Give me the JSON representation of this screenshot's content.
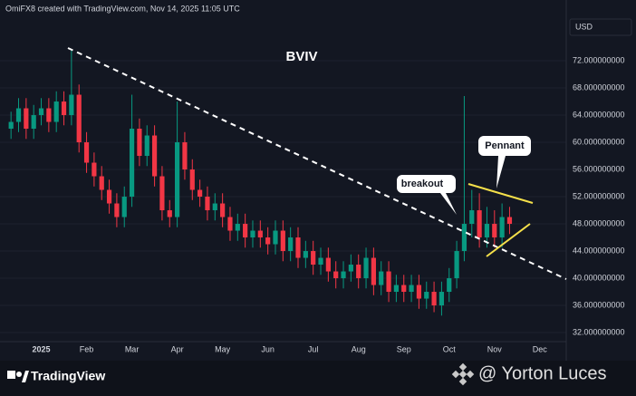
{
  "header": {
    "credit": "OmiFX8 created with TradingView.com, Nov 14, 2025 11:05 UTC"
  },
  "footer": {
    "brand": "TradingView",
    "author": "@ Yorton Luces"
  },
  "chart_data": {
    "type": "candlestick",
    "title": "BVIV",
    "currency_label": "USD",
    "annotations": [
      "breakout",
      "Pennant"
    ],
    "up_color": "#089981",
    "down_color": "#f23645",
    "grid": true,
    "categories": [
      null,
      null,
      null,
      null,
      "2025",
      null,
      null,
      null,
      null,
      null,
      "Feb",
      null,
      null,
      null,
      null,
      null,
      "Mar",
      null,
      null,
      null,
      null,
      null,
      "Apr",
      null,
      null,
      null,
      null,
      null,
      "May",
      null,
      null,
      null,
      null,
      null,
      "Jun",
      null,
      null,
      null,
      null,
      null,
      "Jul",
      null,
      null,
      null,
      null,
      null,
      "Aug",
      null,
      null,
      null,
      null,
      null,
      "Sep",
      null,
      null,
      null,
      null,
      null,
      "Oct",
      null,
      null,
      null,
      null,
      null,
      "Nov",
      null,
      null,
      null,
      null,
      null,
      "Dec",
      null,
      null,
      null
    ],
    "open": [
      62,
      63,
      65,
      62,
      64,
      65,
      63,
      66,
      64,
      67,
      60,
      57,
      55,
      53,
      51,
      49,
      52,
      62,
      58,
      61,
      55,
      50,
      49,
      60,
      56,
      53,
      52,
      50,
      51,
      49,
      47,
      48,
      46,
      47,
      46,
      45,
      47,
      44,
      46,
      43,
      44,
      42,
      43,
      41,
      40,
      41,
      42,
      40,
      43,
      39,
      41,
      38,
      39,
      38,
      39,
      37,
      38,
      36,
      38,
      40,
      44,
      48,
      50,
      46,
      48,
      46,
      49,
      null,
      null,
      null,
      null,
      null,
      null,
      null
    ],
    "high": [
      64.5,
      66.5,
      66.5,
      65.5,
      66.5,
      66.5,
      67.5,
      67.5,
      73.5,
      68.5,
      61.5,
      58.5,
      56.5,
      54.5,
      52.5,
      53.5,
      67,
      63.5,
      62.5,
      62.5,
      56.5,
      51.5,
      66,
      61.5,
      57.5,
      54.5,
      53.5,
      52.5,
      52.5,
      50.5,
      49.5,
      49.5,
      48.5,
      48.5,
      47.5,
      48.5,
      48.5,
      47.5,
      47.5,
      45.5,
      45.5,
      44.5,
      44.5,
      42.5,
      42.5,
      43.5,
      43.5,
      44.5,
      44.5,
      42.5,
      42.5,
      40.5,
      40.5,
      40.5,
      40.5,
      39.5,
      39.5,
      39.5,
      41.5,
      45.5,
      66.8,
      53,
      52.5,
      50.5,
      50,
      51,
      50.5,
      null,
      null,
      null,
      null,
      null,
      null,
      null
    ],
    "low": [
      60.5,
      61.5,
      60.5,
      60.5,
      62.5,
      61.5,
      61.5,
      62.5,
      62.5,
      58.5,
      55.5,
      53.5,
      51.5,
      49.5,
      47.5,
      47.5,
      50.5,
      56.5,
      56.5,
      53.5,
      48.5,
      47.5,
      47.5,
      54.5,
      51.5,
      50.5,
      48.5,
      48.5,
      47.5,
      45.5,
      45.5,
      44.5,
      44.5,
      44.5,
      43.5,
      43.5,
      42.5,
      42.5,
      41.5,
      41.5,
      40.5,
      40.5,
      39.5,
      38.5,
      38.5,
      39.5,
      38.5,
      38.5,
      37.5,
      37.5,
      36.5,
      36.5,
      36.5,
      36.5,
      35.5,
      35.5,
      35,
      34.5,
      36.5,
      38.5,
      42.5,
      46,
      44.5,
      44.5,
      44.5,
      44.5,
      46.5,
      null,
      null,
      null,
      null,
      null,
      null,
      null
    ],
    "close": [
      63,
      65,
      62,
      64,
      65,
      63,
      66,
      64,
      67,
      60,
      57,
      55,
      53,
      51,
      49,
      52,
      62,
      58,
      61,
      55,
      50,
      49,
      60,
      56,
      53,
      52,
      50,
      51,
      49,
      47,
      48,
      46,
      47,
      46,
      45,
      47,
      44,
      46,
      43,
      44,
      42,
      43,
      41,
      40,
      41,
      42,
      40,
      43,
      39,
      41,
      38,
      39,
      38,
      39,
      37,
      38,
      36,
      38,
      40,
      44,
      48,
      50,
      46,
      48,
      46,
      49,
      48,
      null,
      null,
      null,
      null,
      null,
      null,
      null
    ],
    "ylim": [
      30.67,
      78.27
    ],
    "yticks": [
      {
        "value": 32,
        "label": "32.000000000"
      },
      {
        "value": 36,
        "label": "36.000000000"
      },
      {
        "value": 40,
        "label": "40.000000000"
      },
      {
        "value": 44,
        "label": "44.000000000"
      },
      {
        "value": 48,
        "label": "48.000000000"
      },
      {
        "value": 52,
        "label": "52.000000000"
      },
      {
        "value": 56,
        "label": "56.000000000"
      },
      {
        "value": 60,
        "label": "60.000000000"
      },
      {
        "value": 64,
        "label": "64.000000000"
      },
      {
        "value": 68,
        "label": "68.000000000"
      },
      {
        "value": 72,
        "label": "72.000000000"
      }
    ]
  }
}
